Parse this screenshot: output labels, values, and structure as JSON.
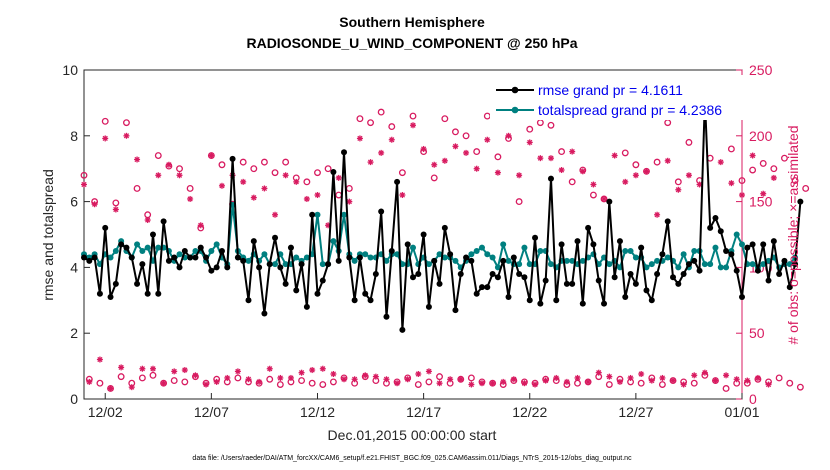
{
  "chart_data": {
    "type": "line",
    "title": "Southern Hemisphere",
    "subtitle": "RADIOSONDE_U_WIND_COMPONENT @ 250 hPa",
    "xlabel": "Dec.01,2015 00:00:00 start",
    "ylabel": "rmse and totalspread",
    "y2label": "# of obs: o=possible; ×=assimilated",
    "xlim": [
      0,
      124
    ],
    "ylim": [
      0,
      10
    ],
    "y2lim": [
      0,
      250
    ],
    "x_tick_labels": [
      "12/02",
      "12/07",
      "12/12",
      "12/17",
      "12/22",
      "12/27",
      "01/01"
    ],
    "x_tick_values": [
      4,
      24,
      44,
      64,
      84,
      104,
      124
    ],
    "y_tick_labels": [
      "0",
      "2",
      "4",
      "6",
      "8",
      "10"
    ],
    "y2_tick_labels": [
      "0",
      "50",
      "100",
      "150",
      "200",
      "250"
    ],
    "footnote": "data file: /Users/raeder/DAI/ATM_forcXX/CAM6_setup/f.e21.FHIST_BGC.f09_025.CAM6assim.011/Diags_NTrS_2015-12/obs_diag_output.nc",
    "series": [
      {
        "name": "rmse",
        "legend": "rmse grand pr = 4.1611",
        "color": "#000000",
        "values": [
          4.3,
          4.2,
          4.3,
          3.2,
          5.2,
          3.1,
          3.5,
          4.7,
          4.6,
          4.3,
          3.5,
          4.1,
          3.2,
          5.0,
          3.2,
          5.4,
          4.2,
          4.3,
          4.0,
          4.5,
          4.3,
          4.3,
          4.6,
          4.3,
          3.9,
          4.0,
          4.5,
          4.0,
          7.3,
          4.3,
          4.2,
          3.0,
          4.8,
          4.0,
          2.6,
          4.1,
          4.9,
          4.0,
          3.5,
          4.6,
          3.3,
          4.1,
          2.8,
          5.6,
          3.2,
          3.6,
          4.1,
          6.9,
          4.2,
          7.5,
          4.3,
          3.0,
          4.3,
          3.2,
          3.0,
          3.8,
          5.7,
          2.5,
          4.5,
          6.6,
          2.1,
          4.7,
          3.7,
          3.8,
          5.0,
          2.8,
          4.2,
          3.5,
          5.2,
          4.4,
          2.7,
          3.8,
          4.3,
          4.2,
          3.2,
          3.4,
          3.4,
          3.8,
          3.7,
          4.2,
          3.1,
          4.3,
          3.8,
          3.7,
          3.0,
          4.9,
          2.9,
          3.6,
          6.7,
          3.0,
          4.7,
          3.5,
          3.5,
          4.8,
          2.9,
          5.2,
          4.7,
          3.6,
          2.9,
          6.0,
          3.7,
          4.8,
          3.1,
          3.8,
          3.5,
          4.6,
          3.3,
          3.0,
          3.8,
          4.4,
          5.4,
          3.7,
          3.5,
          3.8,
          4.1,
          4.2,
          3.9,
          9.1,
          5.2,
          5.5,
          5.1,
          4.5,
          4.4,
          3.9,
          3.1,
          4.6,
          4.7,
          3.9,
          4.7,
          3.6,
          4.8,
          3.8,
          4.2,
          3.4,
          4.1,
          6.0
        ]
      },
      {
        "name": "totalspread",
        "legend": "totalspread grand pr = 4.2386",
        "color": "#008080",
        "values": [
          4.4,
          4.3,
          4.4,
          4.1,
          4.4,
          4.3,
          4.5,
          4.8,
          4.5,
          4.3,
          4.7,
          4.5,
          4.6,
          4.2,
          4.6,
          4.6,
          4.5,
          4.2,
          4.4,
          4.3,
          4.3,
          4.5,
          4.5,
          4.2,
          4.5,
          4.7,
          4.3,
          4.1,
          5.9,
          4.5,
          4.3,
          4.2,
          4.4,
          4.2,
          4.4,
          4.1,
          4.1,
          4.4,
          4.1,
          4.1,
          4.3,
          4.2,
          4.3,
          4.4,
          5.6,
          4.1,
          4.1,
          4.8,
          4.5,
          5.6,
          4.4,
          4.2,
          4.4,
          4.4,
          4.3,
          4.3,
          4.4,
          4.2,
          4.4,
          4.4,
          4.1,
          4.1,
          4.6,
          4.1,
          4.3,
          4.1,
          4.2,
          4.4,
          4.3,
          4.3,
          4.2,
          4.0,
          4.2,
          4.4,
          4.5,
          4.6,
          4.4,
          4.3,
          4.0,
          4.7,
          4.2,
          4.1,
          4.1,
          4.6,
          4.1,
          4.1,
          4.5,
          4.5,
          4.1,
          4.0,
          4.2,
          4.2,
          4.2,
          4.1,
          4.2,
          4.3,
          4.4,
          4.1,
          4.3,
          4.1,
          4.2,
          4.0,
          4.5,
          4.5,
          4.3,
          4.3,
          4.0,
          4.1,
          4.2,
          4.2,
          4.3,
          4.2,
          4.0,
          4.4,
          4.0,
          4.5,
          4.5,
          4.1,
          4.1,
          4.6,
          4.0,
          4.0,
          4.5,
          5.0,
          4.7,
          4.1,
          4.1,
          4.0,
          4.1,
          4.2,
          4.3,
          4.0,
          4.1,
          4.1,
          4.3
        ]
      },
      {
        "name": "obs_possible",
        "color": "#d81b60",
        "axis": "right",
        "marker": "circle",
        "values": [
          170,
          15,
          150,
          12,
          211,
          8,
          149,
          17,
          210,
          12,
          160,
          16,
          140,
          18,
          185,
          12,
          177,
          14,
          175,
          13,
          160,
          17,
          130,
          12,
          185,
          15,
          178,
          13,
          148,
          16,
          180,
          13,
          175,
          12,
          180,
          15,
          172,
          11,
          180,
          13,
          168,
          14,
          165,
          12,
          172,
          11,
          175,
          13,
          155,
          16,
          160,
          12,
          213,
          17,
          210,
          14,
          218,
          12,
          207,
          13,
          172,
          16,
          215,
          11,
          188,
          13,
          168,
          17,
          213,
          12,
          203,
          15,
          200,
          16,
          188,
          13,
          215,
          12,
          184,
          11,
          198,
          14,
          150,
          13,
          205,
          12,
          210,
          15,
          208,
          14,
          188,
          11,
          165,
          12,
          174,
          13,
          155,
          17,
          152,
          11,
          220,
          15,
          187,
          13,
          178,
          12,
          173,
          16,
          180,
          11,
          210,
          14,
          165,
          13,
          195,
          12,
          166,
          18,
          183,
          14,
          240,
          8,
          190,
          12,
          166,
          12,
          174,
          15,
          179,
          13,
          175,
          16,
          183,
          12,
          166,
          9,
          160
        ]
      },
      {
        "name": "obs_assimilated",
        "color": "#d81b60",
        "axis": "right",
        "marker": "asterisk",
        "values": [
          163,
          13,
          148,
          30,
          198,
          8,
          144,
          24,
          200,
          9,
          182,
          23,
          136,
          23,
          170,
          12,
          178,
          21,
          170,
          22,
          152,
          18,
          132,
          11,
          185,
          13,
          162,
          16,
          170,
          21,
          165,
          15,
          153,
          13,
          160,
          23,
          140,
          16,
          170,
          16,
          165,
          20,
          152,
          22,
          155,
          23,
          132,
          19,
          168,
          15,
          150,
          15,
          198,
          18,
          180,
          17,
          187,
          15,
          197,
          12,
          155,
          15,
          208,
          19,
          190,
          21,
          178,
          12,
          181,
          15,
          192,
          15,
          187,
          11,
          175,
          12,
          197,
          12,
          172,
          13,
          200,
          15,
          170,
          12,
          195,
          11,
          183,
          14,
          183,
          16,
          174,
          13,
          188,
          16,
          173,
          13,
          163,
          20,
          152,
          17,
          185,
          13,
          165,
          16,
          170,
          19,
          173,
          14,
          140,
          16,
          181,
          14,
          159,
          11,
          170,
          18,
          163,
          20,
          216,
          14,
          180,
          18,
          164,
          15,
          155,
          14,
          185,
          16,
          156,
          11,
          168
        ]
      }
    ]
  }
}
